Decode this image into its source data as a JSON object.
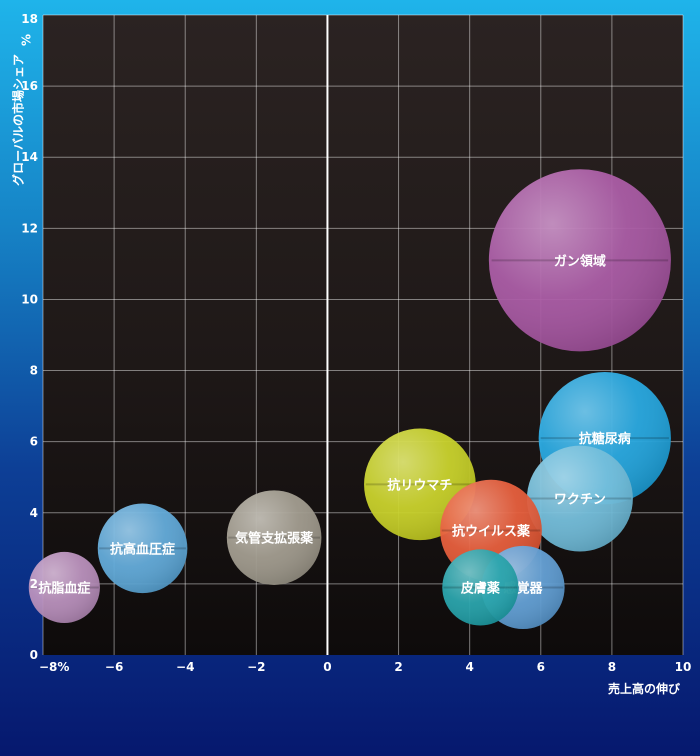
{
  "chart_data": {
    "type": "bubble",
    "xlabel": "売上高の伸び",
    "ylabel": "グローバルの市場シェア",
    "xlim": [
      -8,
      10
    ],
    "ylim": [
      0,
      18
    ],
    "grid": true,
    "x_ticks": [
      {
        "value": -8,
        "label": "−8%"
      },
      {
        "value": -6,
        "label": "−6"
      },
      {
        "value": -4,
        "label": "−4"
      },
      {
        "value": -2,
        "label": "−2"
      },
      {
        "value": 0,
        "label": "0"
      },
      {
        "value": 2,
        "label": "2"
      },
      {
        "value": 4,
        "label": "4"
      },
      {
        "value": 6,
        "label": "6"
      },
      {
        "value": 8,
        "label": "8"
      },
      {
        "value": 10,
        "label": "10"
      }
    ],
    "y_ticks": [
      {
        "value": 0,
        "label": "0"
      },
      {
        "value": 2,
        "label": "2"
      },
      {
        "value": 4,
        "label": "4"
      },
      {
        "value": 6,
        "label": "6"
      },
      {
        "value": 8,
        "label": "8"
      },
      {
        "value": 10,
        "label": "10"
      },
      {
        "value": 12,
        "label": "12"
      },
      {
        "value": 14,
        "label": "14"
      },
      {
        "value": 16,
        "label": "16"
      },
      {
        "value": 18,
        "label": "18"
      }
    ],
    "y_unit_label": "%",
    "bubbles": [
      {
        "label": "抗脂血症",
        "x": -7.4,
        "y": 1.9,
        "size": 1.0,
        "color": "#b58ab8"
      },
      {
        "label": "抗高血圧症",
        "x": -5.2,
        "y": 3.0,
        "size": 1.26,
        "color": "#5aa6d8"
      },
      {
        "label": "気管支拡張薬",
        "x": -1.5,
        "y": 3.3,
        "size": 1.33,
        "color": "#9d988a"
      },
      {
        "label": "ガン領域",
        "x": 7.1,
        "y": 11.1,
        "size": 2.56,
        "color": "#a552a0"
      },
      {
        "label": "抗糖尿病",
        "x": 7.8,
        "y": 6.1,
        "size": 1.86,
        "color": "#1ca3de"
      },
      {
        "label": "抗リウマチ",
        "x": 2.6,
        "y": 4.8,
        "size": 1.57,
        "color": "#c6d020"
      },
      {
        "label": "ワクチン",
        "x": 7.1,
        "y": 4.4,
        "size": 1.49,
        "color": "#6cbad9"
      },
      {
        "label": "抗ウイルス薬",
        "x": 4.6,
        "y": 3.5,
        "size": 1.43,
        "color": "#e55532"
      },
      {
        "label": "感覚器",
        "x": 5.5,
        "y": 1.9,
        "size": 1.17,
        "color": "#5b9bd3"
      },
      {
        "label": "皮膚薬",
        "x": 4.3,
        "y": 1.9,
        "size": 1.07,
        "color": "#1e9fa8"
      }
    ]
  }
}
